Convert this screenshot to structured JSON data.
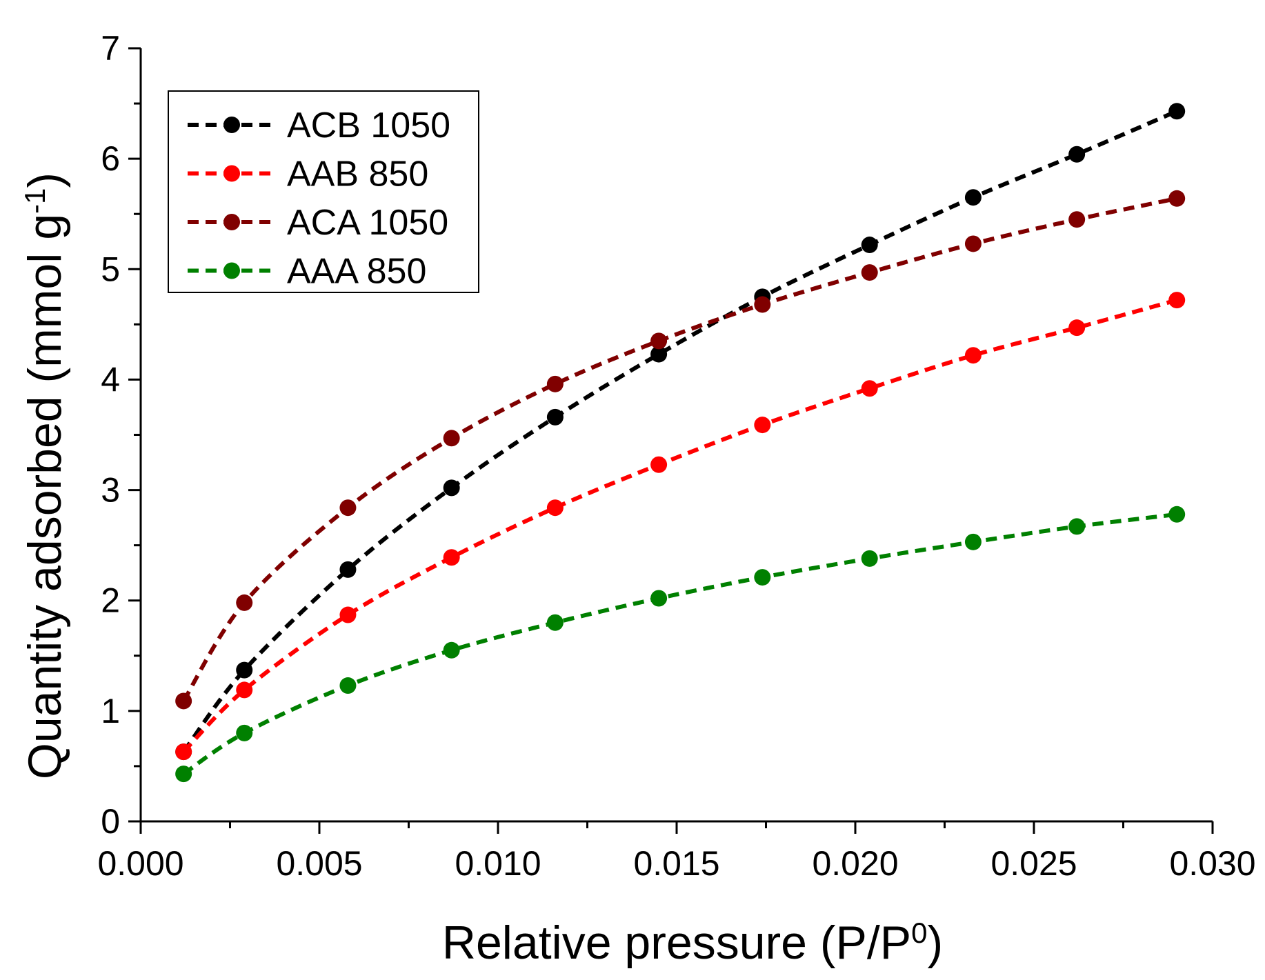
{
  "chart_data": {
    "type": "line",
    "title": "",
    "xlabel": "Relative pressure (P/P",
    "xlabel_sup": "0",
    "xlabel_end": ")",
    "ylabel": "Quantity adsorbed (mmol g",
    "ylabel_sup": "-1",
    "ylabel_end": ")",
    "xlim": [
      0.0,
      0.03
    ],
    "ylim": [
      0,
      7
    ],
    "x_ticks": [
      "0.000",
      "0.005",
      "0.010",
      "0.015",
      "0.020",
      "0.025",
      "0.030"
    ],
    "x_tick_values": [
      0.0,
      0.005,
      0.01,
      0.015,
      0.02,
      0.025,
      0.03
    ],
    "y_ticks": [
      "0",
      "1",
      "2",
      "3",
      "4",
      "5",
      "6",
      "7"
    ],
    "y_tick_values": [
      0,
      1,
      2,
      3,
      4,
      5,
      6,
      7
    ],
    "grid": false,
    "legend_position": "top-left",
    "series": [
      {
        "name": "ACB 1050",
        "color": "#000000",
        "x": [
          0.0012,
          0.0029,
          0.0058,
          0.0087,
          0.0116,
          0.0145,
          0.0174,
          0.0204,
          0.0233,
          0.0262,
          0.029
        ],
        "y": [
          0.63,
          1.37,
          2.28,
          3.02,
          3.66,
          4.23,
          4.75,
          5.22,
          5.65,
          6.04,
          6.43
        ]
      },
      {
        "name": "AAB 850",
        "color": "#ff0000",
        "x": [
          0.0012,
          0.0029,
          0.0058,
          0.0087,
          0.0116,
          0.0145,
          0.0174,
          0.0204,
          0.0233,
          0.0262,
          0.029
        ],
        "y": [
          0.63,
          1.19,
          1.87,
          2.39,
          2.84,
          3.23,
          3.59,
          3.92,
          4.22,
          4.47,
          4.72
        ]
      },
      {
        "name": "ACA 1050",
        "color": "#800000",
        "x": [
          0.0012,
          0.0029,
          0.0058,
          0.0087,
          0.0116,
          0.0145,
          0.0174,
          0.0204,
          0.0233,
          0.0262,
          0.029
        ],
        "y": [
          1.09,
          1.98,
          2.84,
          3.47,
          3.96,
          4.35,
          4.68,
          4.97,
          5.23,
          5.45,
          5.64
        ]
      },
      {
        "name": "AAA 850",
        "color": "#008000",
        "x": [
          0.0012,
          0.0029,
          0.0058,
          0.0087,
          0.0116,
          0.0145,
          0.0174,
          0.0204,
          0.0233,
          0.0262,
          0.029
        ],
        "y": [
          0.43,
          0.8,
          1.23,
          1.55,
          1.8,
          2.02,
          2.21,
          2.38,
          2.53,
          2.67,
          2.78
        ]
      }
    ]
  }
}
